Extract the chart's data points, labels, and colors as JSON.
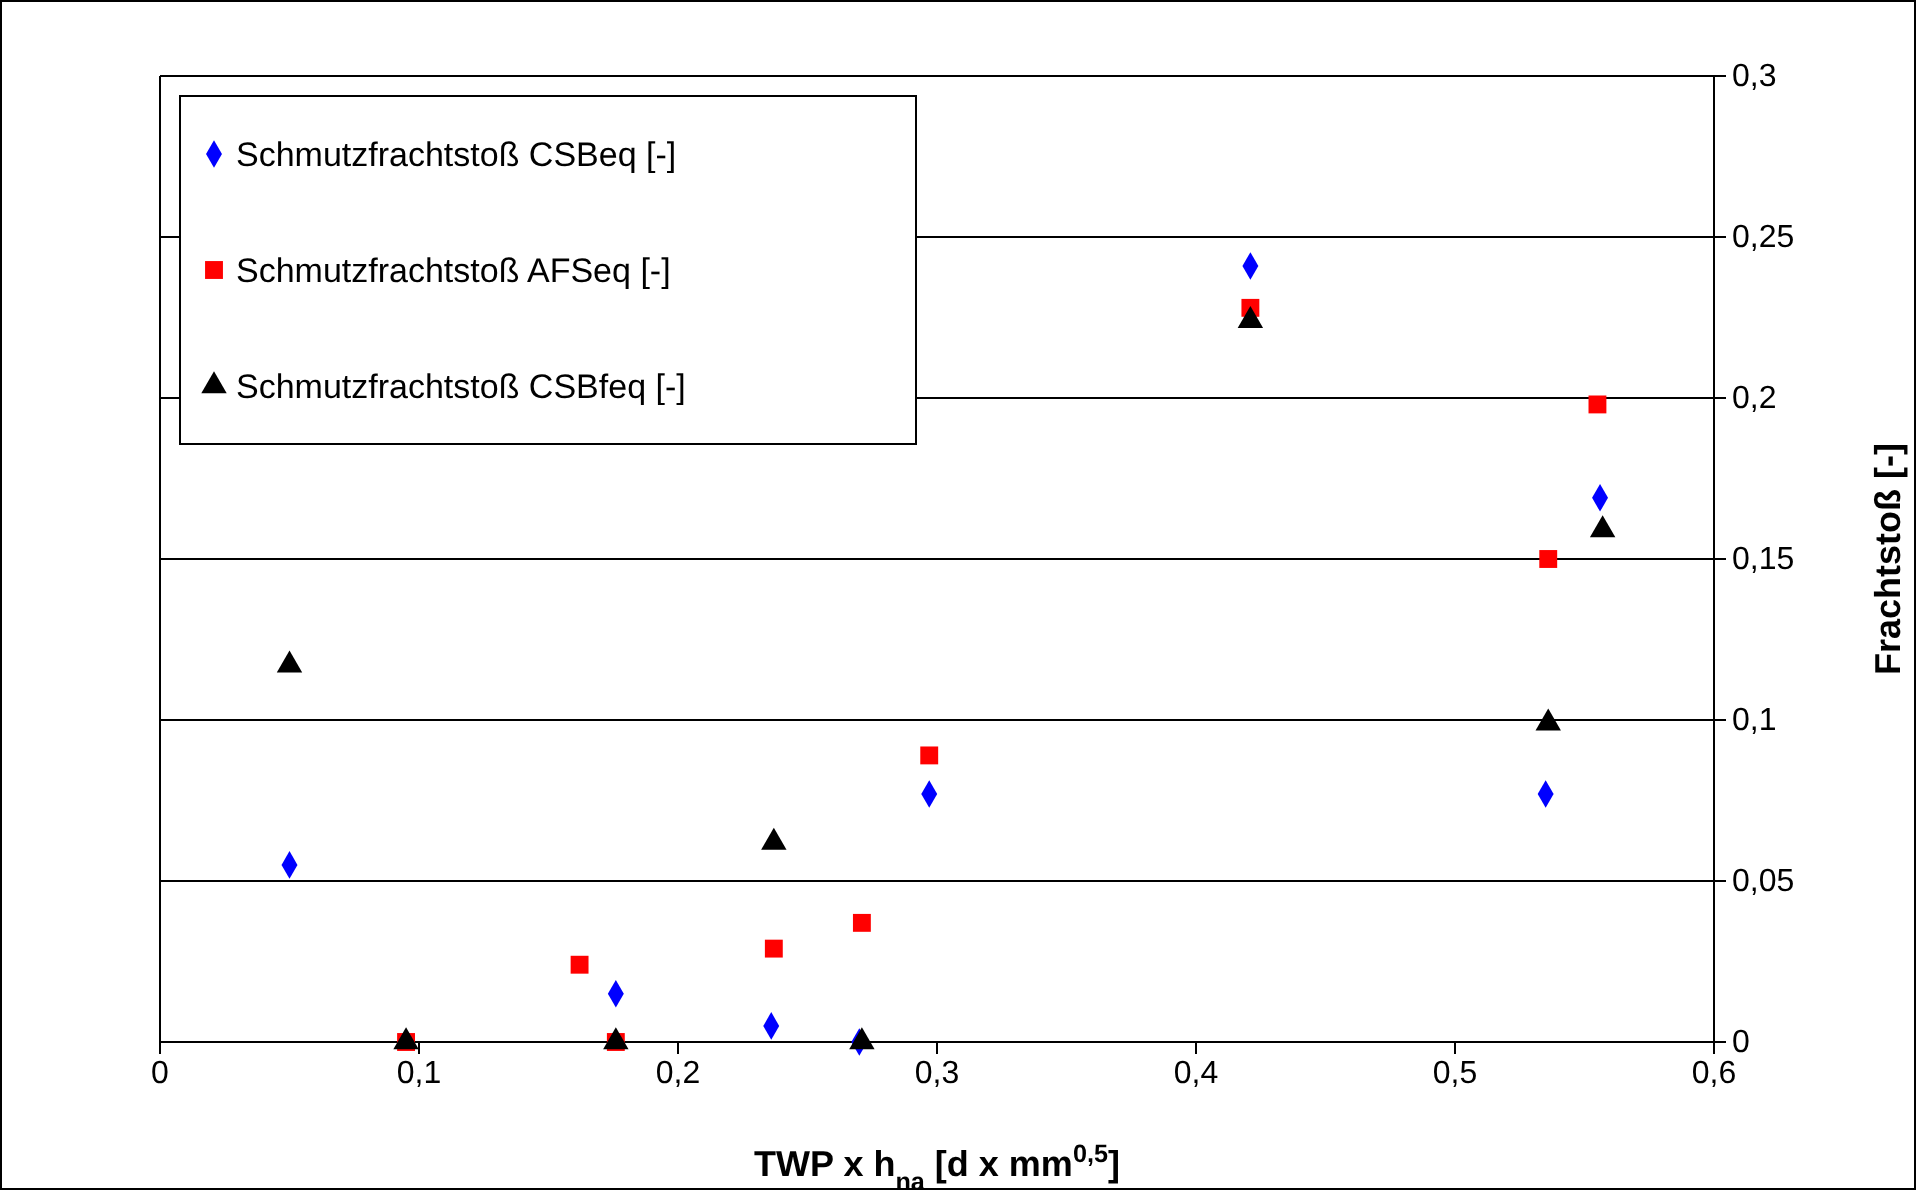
{
  "chart_data": {
    "type": "scatter",
    "xlabel": "TWP x h$_{na}$ [d x mm$^{0,5}$]",
    "ylabel": "Frachtstoß [-]",
    "xlim": [
      0,
      0.6
    ],
    "ylim": [
      0,
      0.3
    ],
    "xticks": [
      0,
      {
        "value": 0.1,
        "label": "0,1"
      },
      {
        "value": 0.2,
        "label": "0,2"
      },
      {
        "value": 0.3,
        "label": "0,3"
      },
      {
        "value": 0.4,
        "label": "0,4"
      },
      {
        "value": 0.5,
        "label": "0,5"
      },
      {
        "value": 0.6,
        "label": "0,6"
      }
    ],
    "yticks": [
      0,
      {
        "value": 0.05,
        "label": "0,05"
      },
      {
        "value": 0.1,
        "label": "0,1"
      },
      {
        "value": 0.15,
        "label": "0,15"
      },
      {
        "value": 0.2,
        "label": "0,2"
      },
      {
        "value": 0.25,
        "label": "0,25"
      },
      {
        "value": 0.3,
        "label": "0,3"
      }
    ],
    "grid": "y",
    "legend": "top left",
    "series": [
      {
        "name": "Schmutzfrachtstoß CSBeq [-]",
        "color": "#0000ff",
        "marker": "diamond",
        "x": [
          0.05,
          0.176,
          0.236,
          0.27,
          0.297,
          0.421,
          0.535,
          0.556
        ],
        "values": [
          0.055,
          0.015,
          0.005,
          0,
          0.077,
          0.241,
          0.077,
          0.169
        ]
      },
      {
        "name": "Schmutzfrachtstoß AFSeq [-]",
        "color": "#ff0000",
        "marker": "square",
        "x": [
          0.095,
          0.162,
          0.176,
          0.237,
          0.271,
          0.297,
          0.421,
          0.536,
          0.555
        ],
        "values": [
          0,
          0.024,
          0,
          0.029,
          0.037,
          0.089,
          0.228,
          0.15,
          0.198
        ]
      },
      {
        "name": "Schmutzfrachtstoß CSBfeq [-]",
        "color": "#000000",
        "marker": "triangle",
        "x": [
          0.05,
          0.095,
          0.176,
          0.237,
          0.271,
          0.421,
          0.536,
          0.557
        ],
        "values": [
          0.117,
          0,
          0,
          0.062,
          0,
          0.224,
          0.099,
          0.159
        ]
      }
    ]
  }
}
